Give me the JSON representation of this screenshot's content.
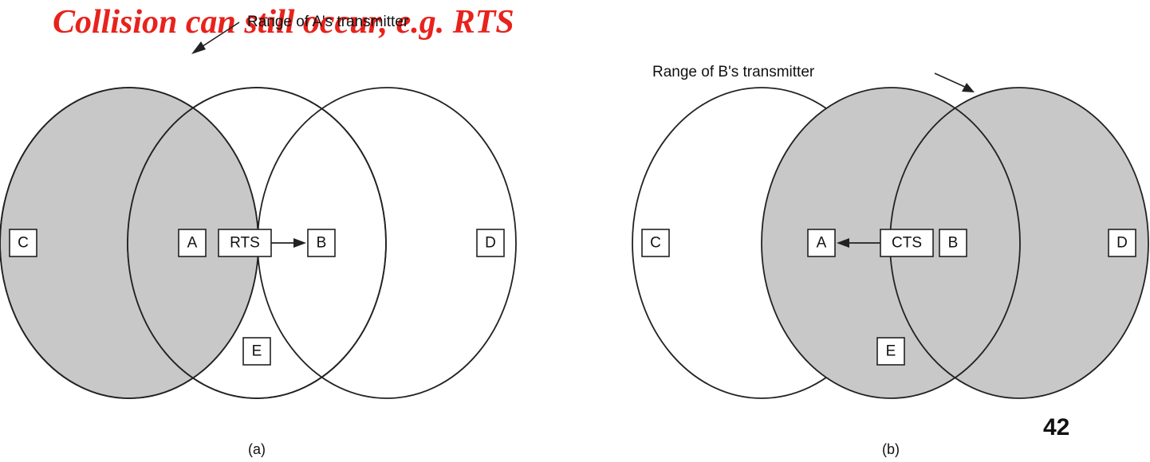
{
  "slide": {
    "title": "Collision can still occur, e.g. RTS",
    "page_number": "42"
  },
  "colors": {
    "title": "#e8221c",
    "shaded_range": "#c8c8c8",
    "outline": "#222222"
  },
  "diagram_a": {
    "range_label": "Range of A's transmitter",
    "caption": "(a)",
    "nodes": {
      "c": "C",
      "a": "A",
      "b": "B",
      "d": "D",
      "e": "E"
    },
    "frame": "RTS"
  },
  "diagram_b": {
    "range_label": "Range of B's transmitter",
    "caption": "(b)",
    "nodes": {
      "c": "C",
      "a": "A",
      "b": "B",
      "d": "D",
      "e": "E"
    },
    "frame": "CTS"
  }
}
